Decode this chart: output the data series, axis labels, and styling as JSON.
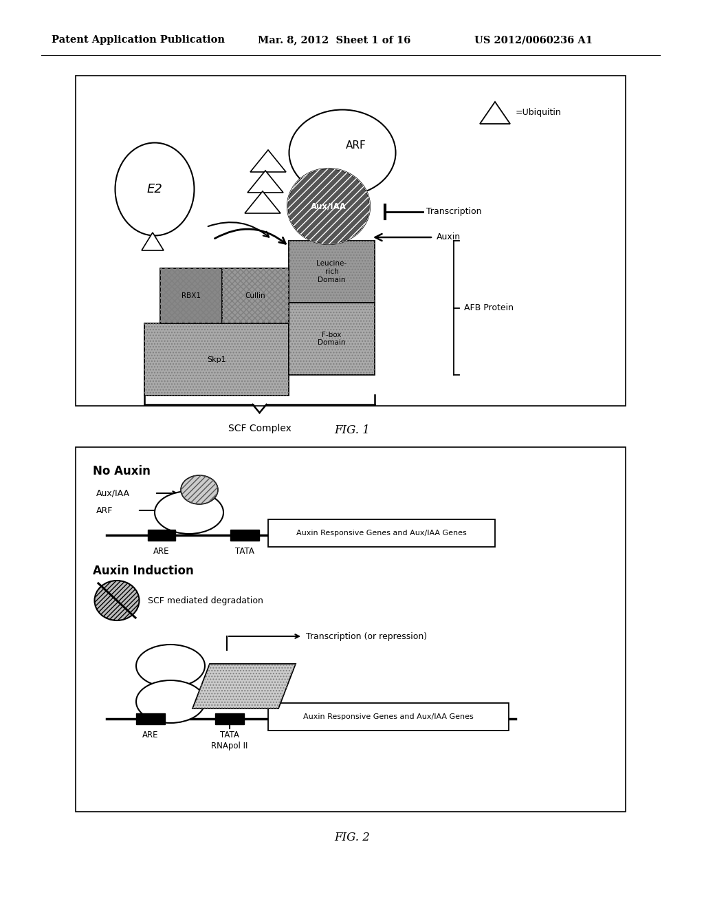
{
  "header_left": "Patent Application Publication",
  "header_mid": "Mar. 8, 2012  Sheet 1 of 16",
  "header_right": "US 2012/0060236 A1",
  "fig1_label": "FIG. 1",
  "fig2_label": "FIG. 2",
  "background": "#ffffff"
}
